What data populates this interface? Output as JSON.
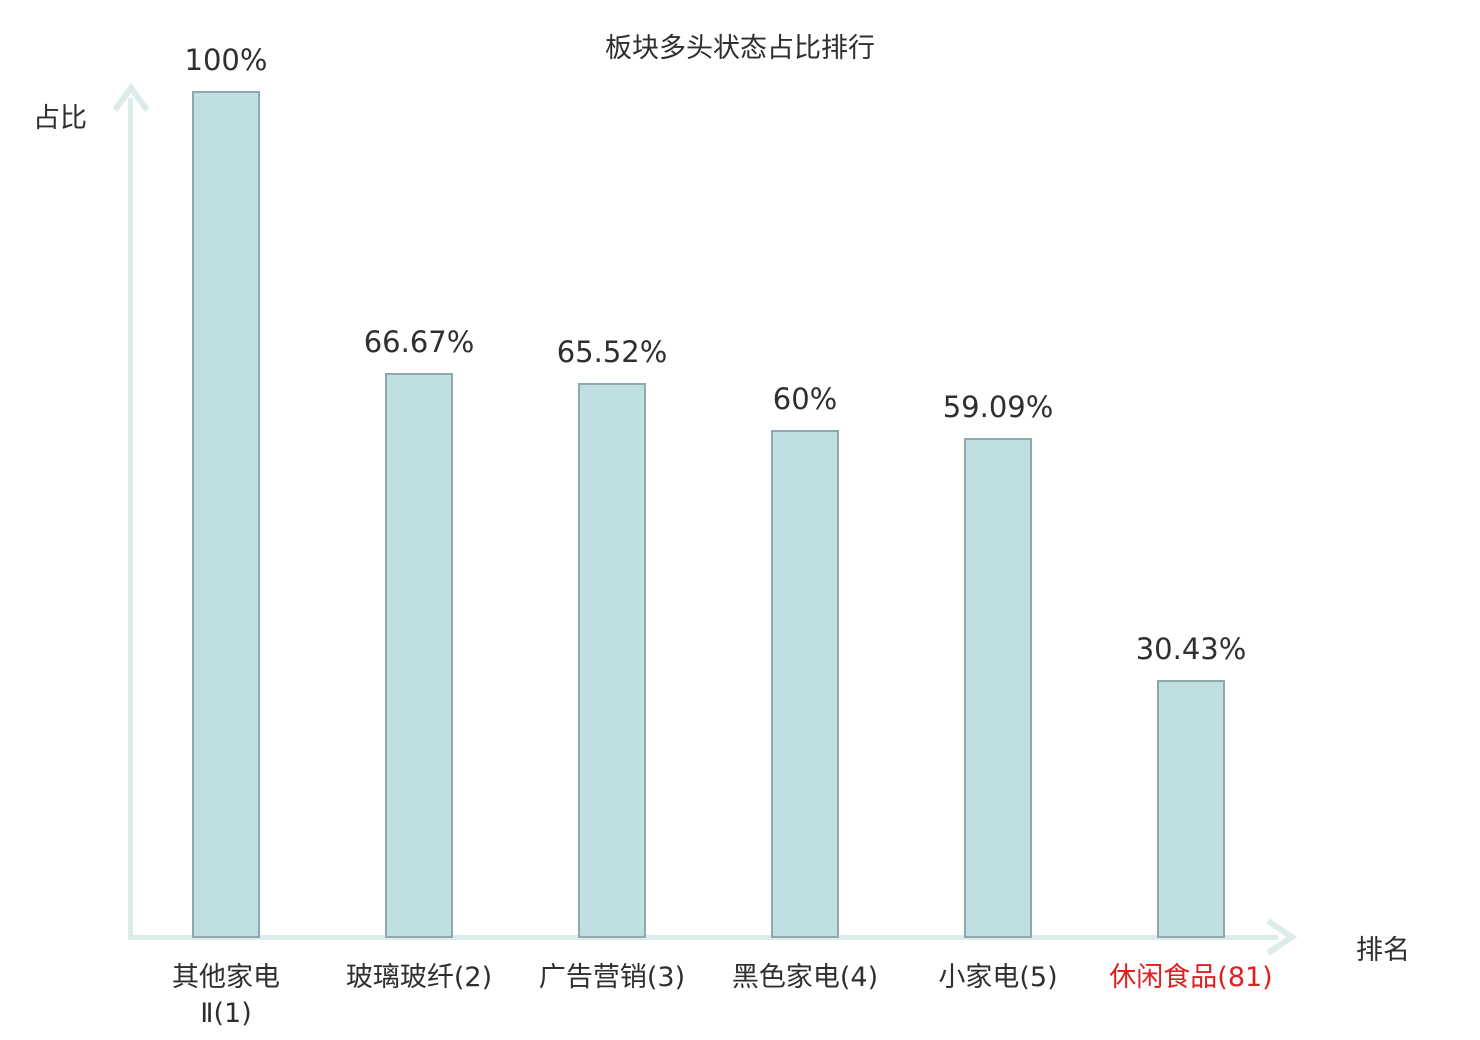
{
  "chart_data": {
    "type": "bar",
    "title": "板块多头状态占比排行",
    "xlabel": "排名",
    "ylabel": "占比",
    "categories": [
      "其他家电\nⅡ(1)",
      "玻璃玻纤(2)",
      "广告营销(3)",
      "黑色家电(4)",
      "小家电(5)",
      "休闲食品(81)"
    ],
    "values": [
      100,
      66.67,
      65.52,
      60,
      59.09,
      30.43
    ],
    "value_labels": [
      "100%",
      "66.67%",
      "65.52%",
      "60%",
      "59.09%",
      "30.43%"
    ],
    "category_colors": [
      "#2f2f2f",
      "#2f2f2f",
      "#2f2f2f",
      "#2f2f2f",
      "#2f2f2f",
      "#e02020"
    ],
    "ylim": [
      0,
      100
    ],
    "grid": false,
    "legend": null,
    "colors": {
      "bar_fill": "#c0dfe3",
      "bar_border": "#8fa8ae",
      "axis": "#dcecea",
      "text": "#2f2f2f",
      "highlight": "#e02020"
    }
  }
}
